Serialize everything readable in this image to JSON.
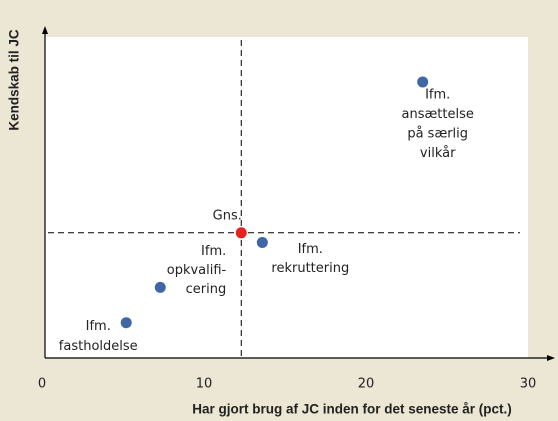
{
  "chart_data": {
    "type": "scatter",
    "x_label": "Har gjort brug af JC inden for det seneste år (pct.)",
    "y_label": "Kendskab til JC",
    "xlim": [
      0,
      30
    ],
    "xticks": [
      0,
      10,
      20,
      30
    ],
    "ylim": [
      0,
      1
    ],
    "color": "#3f67a6",
    "points": [
      {
        "label": [
          "Ifm.",
          "ansættelse",
          "på særlig",
          "vilkår"
        ],
        "x": 23.5,
        "y": 0.86
      },
      {
        "label": [
          "Ifm.",
          "rekruttering"
        ],
        "x": 13.6,
        "y": 0.36
      },
      {
        "label": [
          "Ifm.",
          "opkvalifi-",
          "cering"
        ],
        "x": 7.3,
        "y": 0.22
      },
      {
        "label": [
          "Ifm.",
          "fastholdelse"
        ],
        "x": 5.2,
        "y": 0.11
      }
    ],
    "average": {
      "label": "Gns.",
      "x": 12.3,
      "y": 0.39,
      "color": "#e8211c"
    }
  }
}
